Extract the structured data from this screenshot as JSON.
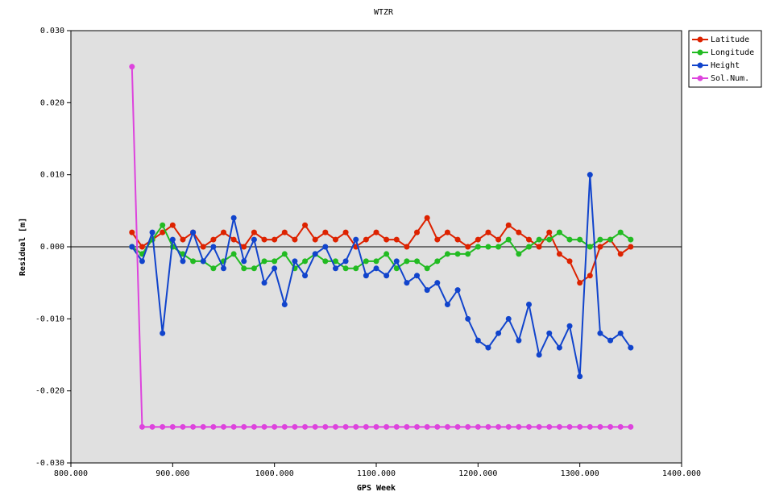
{
  "chart_data": {
    "type": "line",
    "title": "WTZR",
    "x_label": "GPS Week",
    "y_label": "Residual [m]",
    "x": [
      860,
      870,
      880,
      890,
      900,
      910,
      920,
      930,
      940,
      950,
      960,
      970,
      980,
      990,
      1000,
      1010,
      1020,
      1030,
      1040,
      1050,
      1060,
      1070,
      1080,
      1090,
      1100,
      1110,
      1120,
      1130,
      1140,
      1150,
      1160,
      1170,
      1180,
      1190,
      1200,
      1210,
      1220,
      1230,
      1240,
      1250,
      1260,
      1270,
      1280,
      1290,
      1300,
      1310,
      1320,
      1330,
      1340,
      1350
    ],
    "series": [
      {
        "name": "Latitude",
        "color": "#dd2200",
        "values": [
          0.002,
          0.0,
          0.001,
          0.002,
          0.003,
          0.001,
          0.002,
          0.0,
          0.001,
          0.002,
          0.001,
          0.0,
          0.002,
          0.001,
          0.001,
          0.002,
          0.001,
          0.003,
          0.001,
          0.002,
          0.001,
          0.002,
          0.0,
          0.001,
          0.002,
          0.001,
          0.001,
          0.0,
          0.002,
          0.004,
          0.001,
          0.002,
          0.001,
          0.0,
          0.001,
          0.002,
          0.001,
          0.003,
          0.002,
          0.001,
          0.0,
          0.002,
          -0.001,
          -0.002,
          -0.005,
          -0.004,
          0.0,
          0.001,
          -0.001,
          0.0
        ]
      },
      {
        "name": "Longitude",
        "color": "#22bb22",
        "values": [
          0.0,
          -0.001,
          0.001,
          0.003,
          0.0,
          -0.001,
          -0.002,
          -0.002,
          -0.003,
          -0.002,
          -0.001,
          -0.003,
          -0.003,
          -0.002,
          -0.002,
          -0.001,
          -0.003,
          -0.002,
          -0.001,
          -0.002,
          -0.002,
          -0.003,
          -0.003,
          -0.002,
          -0.002,
          -0.001,
          -0.003,
          -0.002,
          -0.002,
          -0.003,
          -0.002,
          -0.001,
          -0.001,
          -0.001,
          0.0,
          0.0,
          0.0,
          0.001,
          -0.001,
          0.0,
          0.001,
          0.001,
          0.002,
          0.001,
          0.001,
          0.0,
          0.001,
          0.001,
          0.002,
          0.001
        ]
      },
      {
        "name": "Height",
        "color": "#1144cc",
        "values": [
          0.0,
          -0.002,
          0.002,
          -0.012,
          0.001,
          -0.002,
          0.002,
          -0.002,
          0.0,
          -0.003,
          0.004,
          -0.002,
          0.001,
          -0.005,
          -0.003,
          -0.008,
          -0.002,
          -0.004,
          -0.001,
          0.0,
          -0.003,
          -0.002,
          0.001,
          -0.004,
          -0.003,
          -0.004,
          -0.002,
          -0.005,
          -0.004,
          -0.006,
          -0.005,
          -0.008,
          -0.006,
          -0.01,
          -0.013,
          -0.014,
          -0.012,
          -0.01,
          -0.013,
          -0.008,
          -0.015,
          -0.012,
          -0.014,
          -0.011,
          -0.018,
          0.01,
          -0.012,
          -0.013,
          -0.012,
          -0.014
        ]
      },
      {
        "name": "Sol.Num.",
        "color": "#dd44dd",
        "values": [
          0.025,
          -0.025,
          -0.025,
          -0.025,
          -0.025,
          -0.025,
          -0.025,
          -0.025,
          -0.025,
          -0.025,
          -0.025,
          -0.025,
          -0.025,
          -0.025,
          -0.025,
          -0.025,
          -0.025,
          -0.025,
          -0.025,
          -0.025,
          -0.025,
          -0.025,
          -0.025,
          -0.025,
          -0.025,
          -0.025,
          -0.025,
          -0.025,
          -0.025,
          -0.025,
          -0.025,
          -0.025,
          -0.025,
          -0.025,
          -0.025,
          -0.025,
          -0.025,
          -0.025,
          -0.025,
          -0.025,
          -0.025,
          -0.025,
          -0.025,
          -0.025,
          -0.025,
          -0.025,
          -0.025,
          -0.025,
          -0.025,
          -0.025
        ]
      }
    ],
    "xlim": [
      800,
      1400
    ],
    "xticks": [
      {
        "value": 800,
        "label": "800.000"
      },
      {
        "value": 900,
        "label": "900.000"
      },
      {
        "value": 1000,
        "label": "1000.000"
      },
      {
        "value": 1100,
        "label": "1100.000"
      },
      {
        "value": 1200,
        "label": "1200.000"
      },
      {
        "value": 1300,
        "label": "1300.000"
      },
      {
        "value": 1400,
        "label": "1400.000"
      }
    ],
    "ylim": [
      -0.03,
      0.03
    ],
    "yticks": [
      {
        "value": -0.03,
        "label": "-0.030"
      },
      {
        "value": -0.02,
        "label": "-0.020"
      },
      {
        "value": -0.01,
        "label": "-0.010"
      },
      {
        "value": 0,
        "label": "0.000"
      },
      {
        "value": 0.01,
        "label": "0.010"
      },
      {
        "value": 0.02,
        "label": "0.020"
      },
      {
        "value": 0.03,
        "label": "0.030"
      }
    ],
    "zero_line": true,
    "legend": "right",
    "plot_background": "#e0e0e0"
  }
}
